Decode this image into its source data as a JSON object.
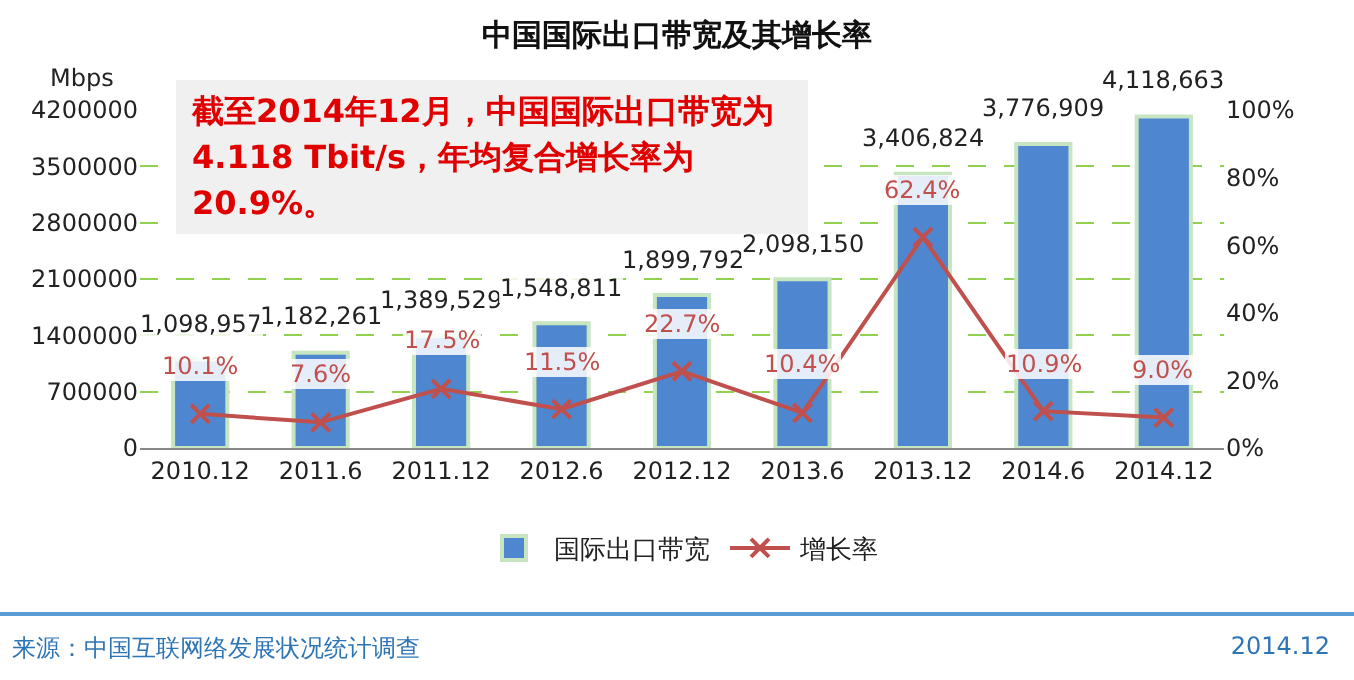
{
  "chart_data": {
    "type": "bar",
    "title": "中国国际出口带宽及其增长率",
    "ylabel": "Mbps",
    "categories": [
      "2010.12",
      "2011.6",
      "2011.12",
      "2012.6",
      "2012.12",
      "2013.6",
      "2013.12",
      "2014.6",
      "2014.12"
    ],
    "series": [
      {
        "name": "国际出口带宽",
        "color": "#4f86d0",
        "values": [
          1098957,
          1182261,
          1389529,
          1548811,
          1899792,
          2098150,
          3406824,
          3776909,
          4118663
        ]
      },
      {
        "name": "增长率",
        "type": "line",
        "axis": "y2",
        "color": "#c0504d",
        "marker": "cross",
        "values": [
          10.1,
          7.6,
          17.5,
          11.5,
          22.7,
          10.4,
          62.4,
          10.9,
          9.0
        ],
        "value_labels": [
          "10.1%",
          "7.6%",
          "17.5%",
          "11.5%",
          "22.7%",
          "10.4%",
          "62.4%",
          "10.9%",
          "9.0%"
        ]
      }
    ],
    "ylim": [
      0,
      4200000
    ],
    "yticks": [
      0,
      700000,
      1400000,
      2100000,
      2800000,
      3500000,
      4200000
    ],
    "y2lim": [
      0,
      100
    ],
    "y2ticks": [
      {
        "value": 0,
        "label": "0%"
      },
      {
        "value": 20,
        "label": "20%"
      },
      {
        "value": 40,
        "label": "40%"
      },
      {
        "value": 60,
        "label": "60%"
      },
      {
        "value": 80,
        "label": "80%"
      },
      {
        "value": 100,
        "label": "100%"
      }
    ],
    "value_labels": [
      "1,098,957",
      "1,182,261",
      "1,389,529",
      "1,548,811",
      "1,899,792",
      "2,098,150",
      "3,406,824",
      "3,776,909",
      "4,118,663"
    ],
    "grid": "y",
    "legend": "bottom",
    "annotations": [
      "截至2014年12月，中国国际出口带宽为4.118 Tbit/s，年均复合增长率为20.9%。",
      "来源：中国互联网络发展状况统计调查",
      "2014.12"
    ]
  }
}
